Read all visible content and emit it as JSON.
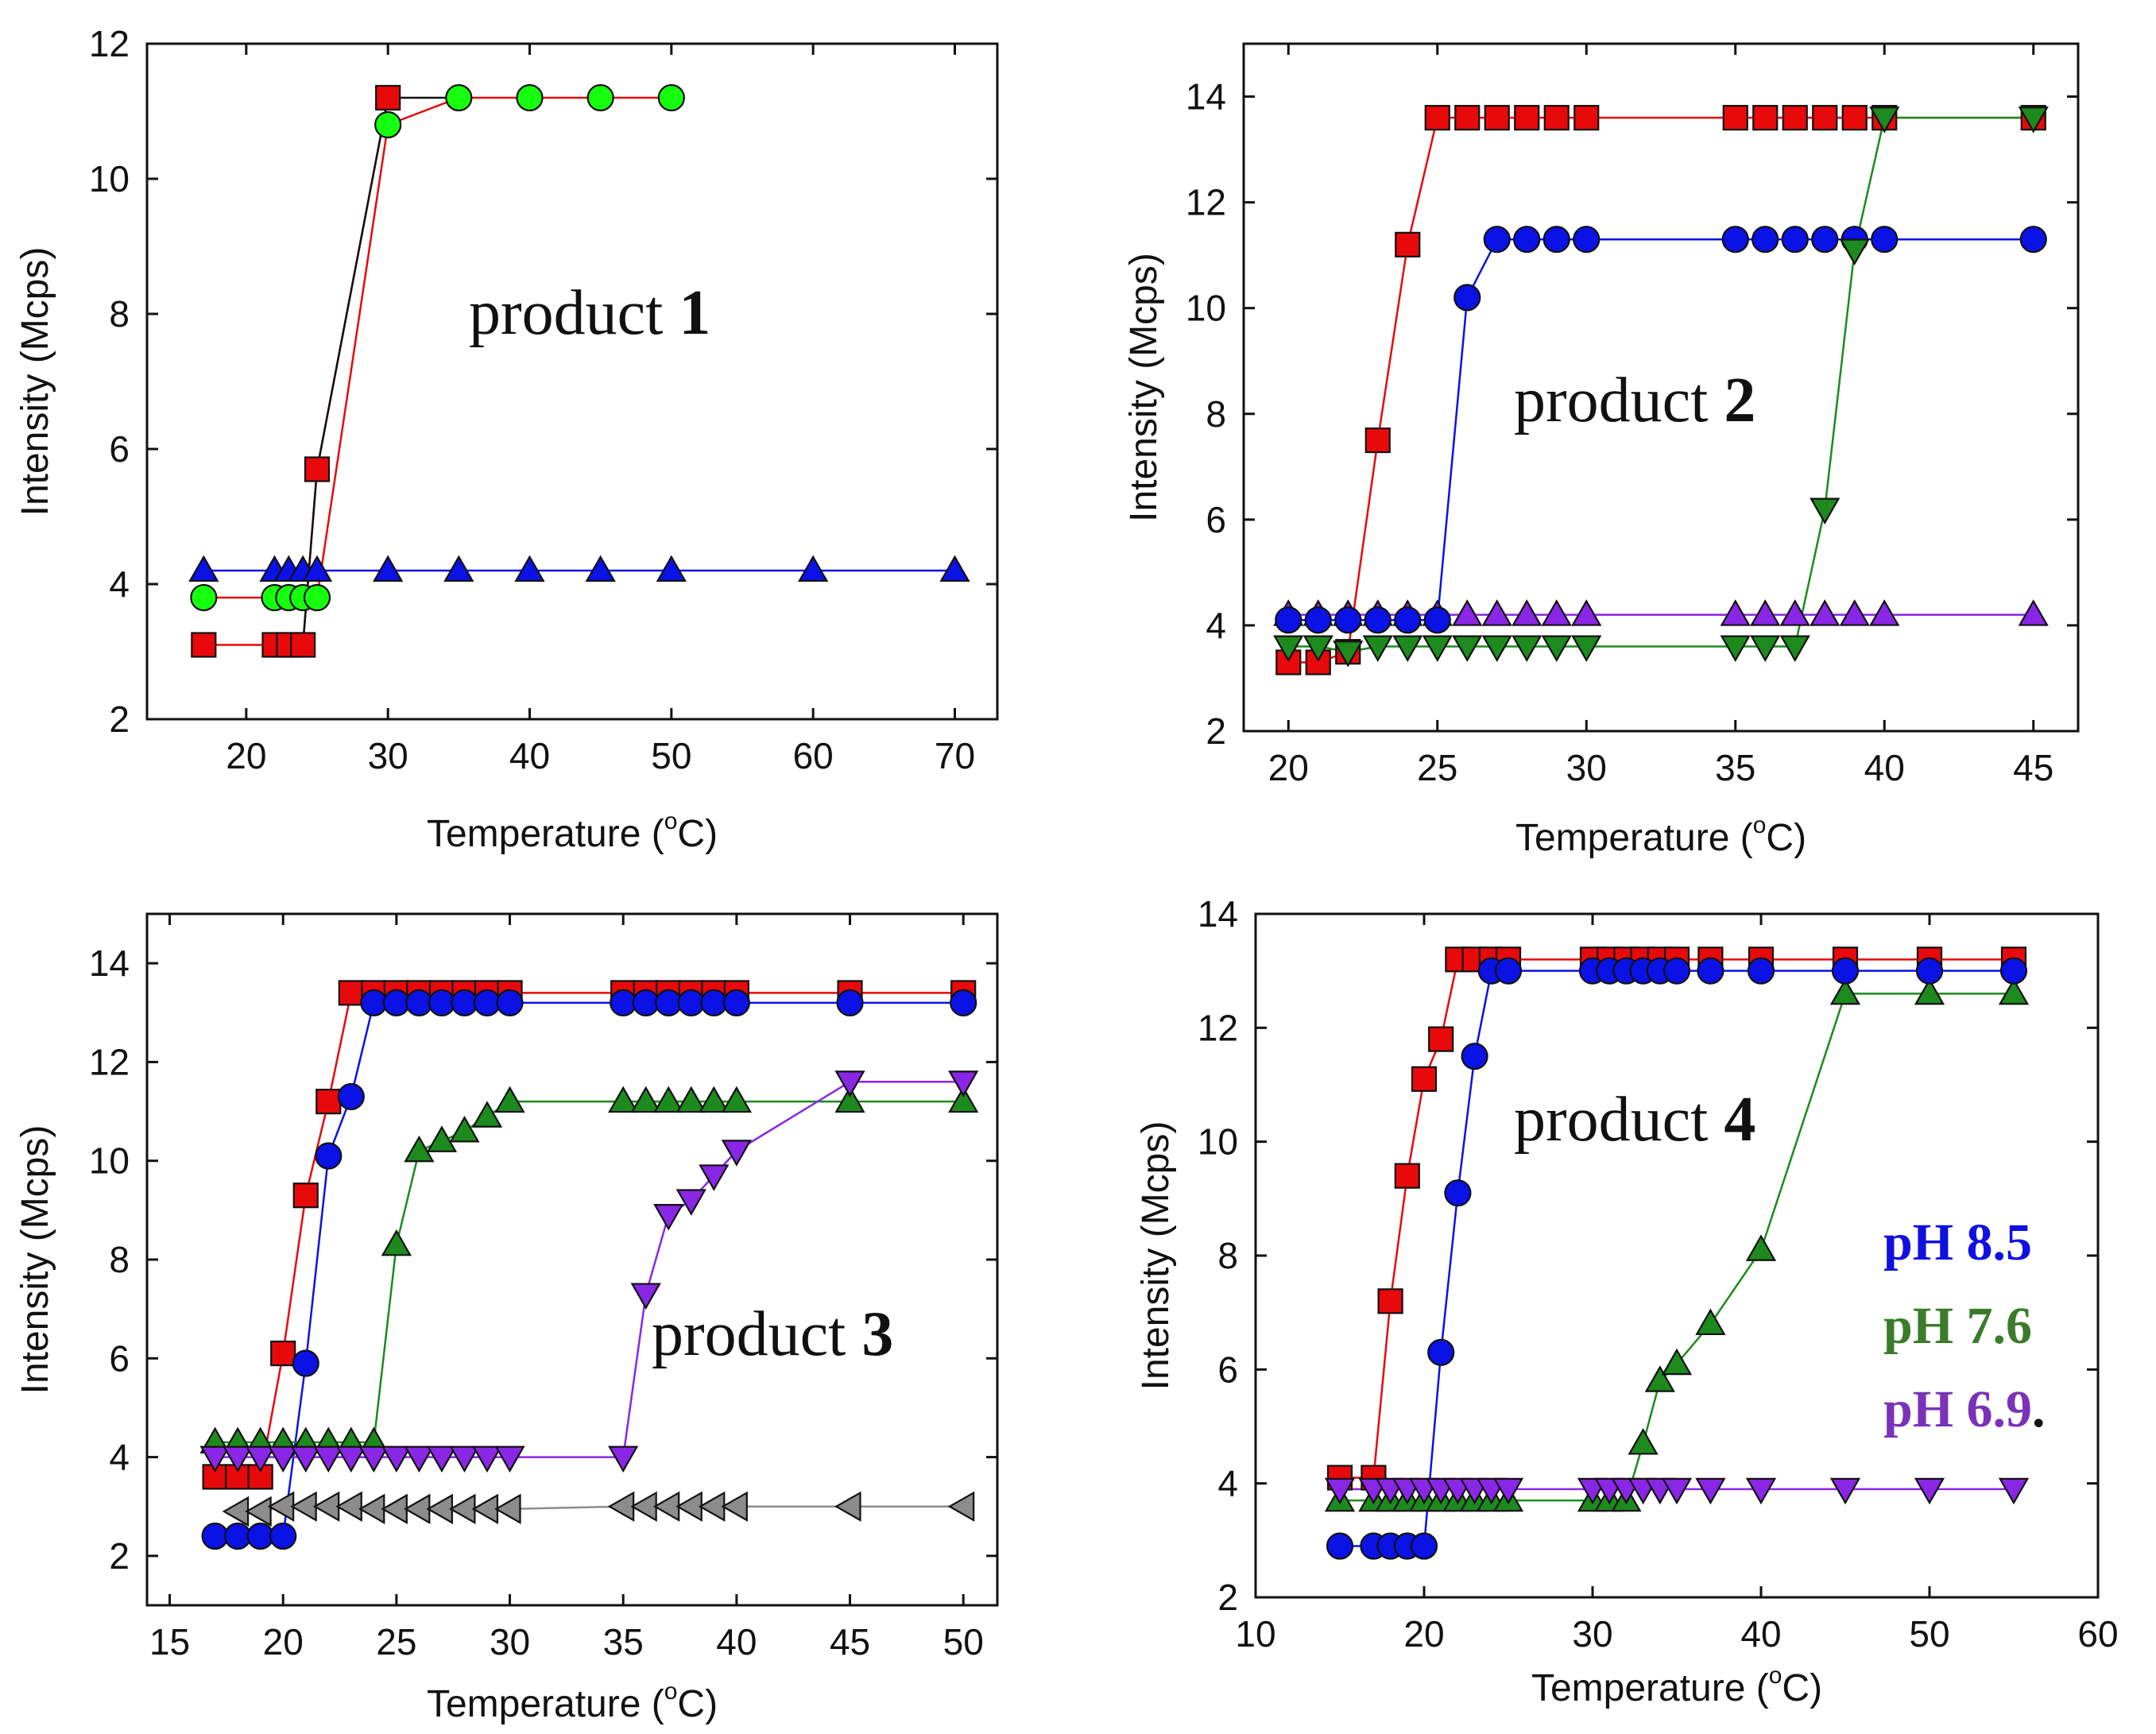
{
  "figure": {
    "colors": {
      "red": "#e8090b",
      "blue": "#0a12e6",
      "green": "#16ff0e",
      "darkgreen": "#1d8a1d",
      "purple": "#8a26e6",
      "gray": "#8c8c8c",
      "legend_blue": "#1010e0",
      "legend_green": "#3a7c2a",
      "legend_purple": "#7a32b8"
    },
    "legend": [
      {
        "label": "pH 8.5",
        "color_key": "legend_blue"
      },
      {
        "label": "pH 7.6",
        "color_key": "legend_green"
      },
      {
        "label": "pH 6.9",
        "color_key": "legend_purple",
        "suffix": "."
      }
    ]
  },
  "chart_data": [
    {
      "type": "line",
      "panel": "top-left",
      "annotation_prefix": "product ",
      "annotation_number": "1",
      "xlabel": "Temperature (",
      "xlabel_deg": "o",
      "xlabel_unit": "C)",
      "ylabel": "Intensity (Mcps)",
      "xlim": [
        13,
        73
      ],
      "ylim": [
        2,
        12
      ],
      "xticks": [
        20,
        30,
        40,
        50,
        60,
        70
      ],
      "yticks": [
        2,
        4,
        6,
        8,
        10,
        12
      ],
      "series": [
        {
          "name": "red-squares",
          "color_key": "red",
          "line_key": "red",
          "marker": "square",
          "x": [
            17,
            22,
            23,
            24,
            25,
            30
          ],
          "y": [
            3.1,
            3.1,
            3.1,
            3.1,
            5.7,
            11.2
          ]
        },
        {
          "name": "green-circles",
          "color_key": "green",
          "line_key": "red",
          "marker": "circle",
          "x": [
            17,
            22,
            23,
            24,
            25,
            30,
            35,
            40,
            45,
            50
          ],
          "y": [
            3.8,
            3.8,
            3.8,
            3.8,
            3.8,
            10.8,
            11.2,
            11.2,
            11.2,
            11.2
          ]
        },
        {
          "name": "blue-triangles",
          "color_key": "blue",
          "line_key": "blue",
          "marker": "triangle-up",
          "x": [
            17,
            22,
            23,
            24,
            25,
            30,
            35,
            40,
            45,
            50,
            60,
            70
          ],
          "y": [
            4.2,
            4.2,
            4.2,
            4.2,
            4.2,
            4.2,
            4.2,
            4.2,
            4.2,
            4.2,
            4.2,
            4.2
          ]
        },
        {
          "name": "black-guide",
          "color_key": "none",
          "line_key": "black",
          "marker": "none",
          "x": [
            24,
            25,
            30,
            35
          ],
          "y": [
            3.1,
            5.7,
            11.2,
            11.2
          ]
        }
      ]
    },
    {
      "type": "line",
      "panel": "top-right",
      "annotation_prefix": "product ",
      "annotation_number": "2",
      "xlabel": "Temperature (",
      "xlabel_deg": "o",
      "xlabel_unit": "C)",
      "ylabel": "Intensity (Mcps)",
      "xlim": [
        18.5,
        46.5
      ],
      "ylim": [
        2,
        15
      ],
      "xticks": [
        20,
        25,
        30,
        35,
        40,
        45
      ],
      "yticks": [
        2,
        4,
        6,
        8,
        10,
        12,
        14
      ],
      "series": [
        {
          "name": "purple-triangles",
          "color_key": "purple",
          "line_key": "purple",
          "marker": "triangle-up",
          "x": [
            20,
            21,
            22,
            23,
            24,
            25,
            26,
            27,
            28,
            29,
            30,
            35,
            36,
            37,
            38,
            39,
            40,
            45
          ],
          "y": [
            4.2,
            4.2,
            4.2,
            4.2,
            4.2,
            4.2,
            4.2,
            4.2,
            4.2,
            4.2,
            4.2,
            4.2,
            4.2,
            4.2,
            4.2,
            4.2,
            4.2,
            4.2
          ]
        },
        {
          "name": "red-squares",
          "color_key": "red",
          "line_key": "red",
          "marker": "square",
          "x": [
            20,
            21,
            22,
            23,
            24,
            25,
            26,
            27,
            28,
            29,
            30,
            35,
            36,
            37,
            38,
            39,
            40,
            45
          ],
          "y": [
            3.3,
            3.3,
            3.5,
            7.5,
            11.2,
            13.6,
            13.6,
            13.6,
            13.6,
            13.6,
            13.6,
            13.6,
            13.6,
            13.6,
            13.6,
            13.6,
            13.6,
            13.6
          ]
        },
        {
          "name": "blue-circles",
          "color_key": "blue",
          "line_key": "blue",
          "marker": "circle",
          "x": [
            20,
            21,
            22,
            23,
            24,
            25,
            26,
            27,
            28,
            29,
            30,
            35,
            36,
            37,
            38,
            39,
            40,
            45
          ],
          "y": [
            4.1,
            4.1,
            4.1,
            4.1,
            4.1,
            4.1,
            10.2,
            11.3,
            11.3,
            11.3,
            11.3,
            11.3,
            11.3,
            11.3,
            11.3,
            11.3,
            11.3,
            11.3
          ]
        },
        {
          "name": "green-down-triangles",
          "color_key": "darkgreen",
          "line_key": "darkgreen",
          "marker": "triangle-down",
          "x": [
            20,
            21,
            22,
            23,
            24,
            25,
            26,
            27,
            28,
            29,
            30,
            35,
            36,
            37,
            38,
            39,
            40,
            45
          ],
          "y": [
            3.6,
            3.6,
            3.5,
            3.6,
            3.6,
            3.6,
            3.6,
            3.6,
            3.6,
            3.6,
            3.6,
            3.6,
            3.6,
            3.6,
            6.2,
            11.1,
            13.6,
            13.6
          ]
        }
      ]
    },
    {
      "type": "line",
      "panel": "bottom-left",
      "annotation_prefix": "product ",
      "annotation_number": "3",
      "xlabel": "Temperature (",
      "xlabel_deg": "o",
      "xlabel_unit": "C)",
      "ylabel": "Intensity (Mcps)",
      "xlim": [
        14,
        51.5
      ],
      "ylim": [
        1,
        15
      ],
      "xticks": [
        15,
        20,
        25,
        30,
        35,
        40,
        45,
        50
      ],
      "yticks": [
        2,
        4,
        6,
        8,
        10,
        12,
        14
      ],
      "series": [
        {
          "name": "gray-left-triangles",
          "color_key": "gray",
          "line_key": "gray",
          "marker": "triangle-left",
          "x": [
            18,
            19,
            20,
            21,
            22,
            23,
            24,
            25,
            26,
            27,
            28,
            29,
            30,
            35,
            36,
            37,
            38,
            39,
            40,
            45,
            50
          ],
          "y": [
            2.9,
            2.9,
            3.0,
            3.0,
            3.0,
            3.0,
            2.95,
            2.95,
            2.95,
            2.95,
            2.95,
            2.95,
            2.95,
            3.0,
            3.0,
            3.0,
            3.0,
            3.0,
            3.0,
            3.0,
            3.0
          ]
        },
        {
          "name": "red-squares",
          "color_key": "red",
          "line_key": "red",
          "marker": "square",
          "x": [
            17,
            18,
            19,
            20,
            21,
            22,
            23,
            24,
            25,
            26,
            27,
            28,
            29,
            30,
            35,
            36,
            37,
            38,
            39,
            40,
            45,
            50
          ],
          "y": [
            3.6,
            3.6,
            3.6,
            6.1,
            9.3,
            11.2,
            13.4,
            13.4,
            13.4,
            13.4,
            13.4,
            13.4,
            13.4,
            13.4,
            13.4,
            13.4,
            13.4,
            13.4,
            13.4,
            13.4,
            13.4,
            13.4
          ]
        },
        {
          "name": "blue-circles",
          "color_key": "blue",
          "line_key": "blue",
          "marker": "circle",
          "x": [
            17,
            18,
            19,
            20,
            21,
            22,
            23,
            24,
            25,
            26,
            27,
            28,
            29,
            30,
            35,
            36,
            37,
            38,
            39,
            40,
            45,
            50
          ],
          "y": [
            2.4,
            2.4,
            2.4,
            2.4,
            5.9,
            10.1,
            11.3,
            13.2,
            13.2,
            13.2,
            13.2,
            13.2,
            13.2,
            13.2,
            13.2,
            13.2,
            13.2,
            13.2,
            13.2,
            13.2,
            13.2,
            13.2
          ]
        },
        {
          "name": "green-triangles",
          "color_key": "darkgreen",
          "line_key": "darkgreen",
          "marker": "triangle-up",
          "x": [
            17,
            18,
            19,
            20,
            21,
            22,
            23,
            24,
            25,
            26,
            27,
            28,
            29,
            30,
            35,
            36,
            37,
            38,
            39,
            40,
            45,
            50
          ],
          "y": [
            4.3,
            4.3,
            4.3,
            4.3,
            4.3,
            4.3,
            4.3,
            4.3,
            8.3,
            10.2,
            10.4,
            10.6,
            10.9,
            11.2,
            11.2,
            11.2,
            11.2,
            11.2,
            11.2,
            11.2,
            11.2,
            11.2
          ]
        },
        {
          "name": "purple-down-triangles",
          "color_key": "purple",
          "line_key": "purple",
          "marker": "triangle-down",
          "x": [
            17,
            18,
            19,
            20,
            21,
            22,
            23,
            24,
            25,
            26,
            27,
            28,
            29,
            30,
            35,
            36,
            37,
            38,
            39,
            40,
            45,
            50
          ],
          "y": [
            4.0,
            4.0,
            4.0,
            4.0,
            4.0,
            4.0,
            4.0,
            4.0,
            4.0,
            4.0,
            4.0,
            4.0,
            4.0,
            4.0,
            4.0,
            7.3,
            8.9,
            9.2,
            9.7,
            10.2,
            11.6,
            11.6
          ]
        }
      ]
    },
    {
      "type": "line",
      "panel": "bottom-right",
      "annotation_prefix": "product ",
      "annotation_number": "4",
      "xlabel": "Temperature (",
      "xlabel_deg": "o",
      "xlabel_unit": "C)",
      "ylabel": "Intensity (Mcps)",
      "xlim": [
        10,
        60
      ],
      "ylim": [
        2,
        14
      ],
      "xticks": [
        10,
        20,
        30,
        40,
        50,
        60
      ],
      "yticks": [
        2,
        4,
        6,
        8,
        10,
        12,
        14
      ],
      "series": [
        {
          "name": "green-triangles",
          "color_key": "darkgreen",
          "line_key": "darkgreen",
          "marker": "triangle-up",
          "x": [
            15,
            17,
            18,
            19,
            20,
            21,
            22,
            23,
            24,
            25,
            30,
            31,
            32,
            33,
            34,
            35,
            37,
            40,
            45,
            50,
            55
          ],
          "y": [
            3.7,
            3.7,
            3.7,
            3.7,
            3.7,
            3.7,
            3.7,
            3.7,
            3.7,
            3.7,
            3.7,
            3.7,
            3.7,
            4.7,
            5.8,
            6.1,
            6.8,
            8.1,
            12.6,
            12.6,
            12.6
          ]
        },
        {
          "name": "red-squares",
          "color_key": "red",
          "line_key": "red",
          "marker": "square",
          "x": [
            15,
            17,
            18,
            19,
            20,
            21,
            22,
            23,
            24,
            25,
            30,
            31,
            32,
            33,
            34,
            35,
            37,
            40,
            45,
            50,
            55
          ],
          "y": [
            4.1,
            4.1,
            7.2,
            9.4,
            11.1,
            11.8,
            13.2,
            13.2,
            13.2,
            13.2,
            13.2,
            13.2,
            13.2,
            13.2,
            13.2,
            13.2,
            13.2,
            13.2,
            13.2,
            13.2,
            13.2
          ]
        },
        {
          "name": "blue-circles",
          "color_key": "blue",
          "line_key": "blue",
          "marker": "circle",
          "x": [
            15,
            17,
            18,
            19,
            20,
            21,
            22,
            23,
            24,
            25,
            30,
            31,
            32,
            33,
            34,
            35,
            37,
            40,
            45,
            50,
            55
          ],
          "y": [
            2.9,
            2.9,
            2.9,
            2.9,
            2.9,
            6.3,
            9.1,
            11.5,
            13.0,
            13.0,
            13.0,
            13.0,
            13.0,
            13.0,
            13.0,
            13.0,
            13.0,
            13.0,
            13.0,
            13.0,
            13.0
          ]
        },
        {
          "name": "purple-down-triangles",
          "color_key": "purple",
          "line_key": "purple",
          "marker": "triangle-down",
          "x": [
            15,
            17,
            18,
            19,
            20,
            21,
            22,
            23,
            24,
            25,
            30,
            31,
            32,
            33,
            34,
            35,
            37,
            40,
            45,
            50,
            55
          ],
          "y": [
            3.9,
            3.9,
            3.9,
            3.9,
            3.9,
            3.9,
            3.9,
            3.9,
            3.9,
            3.9,
            3.9,
            3.9,
            3.9,
            3.9,
            3.9,
            3.9,
            3.9,
            3.9,
            3.9,
            3.9,
            3.9
          ]
        }
      ]
    }
  ]
}
